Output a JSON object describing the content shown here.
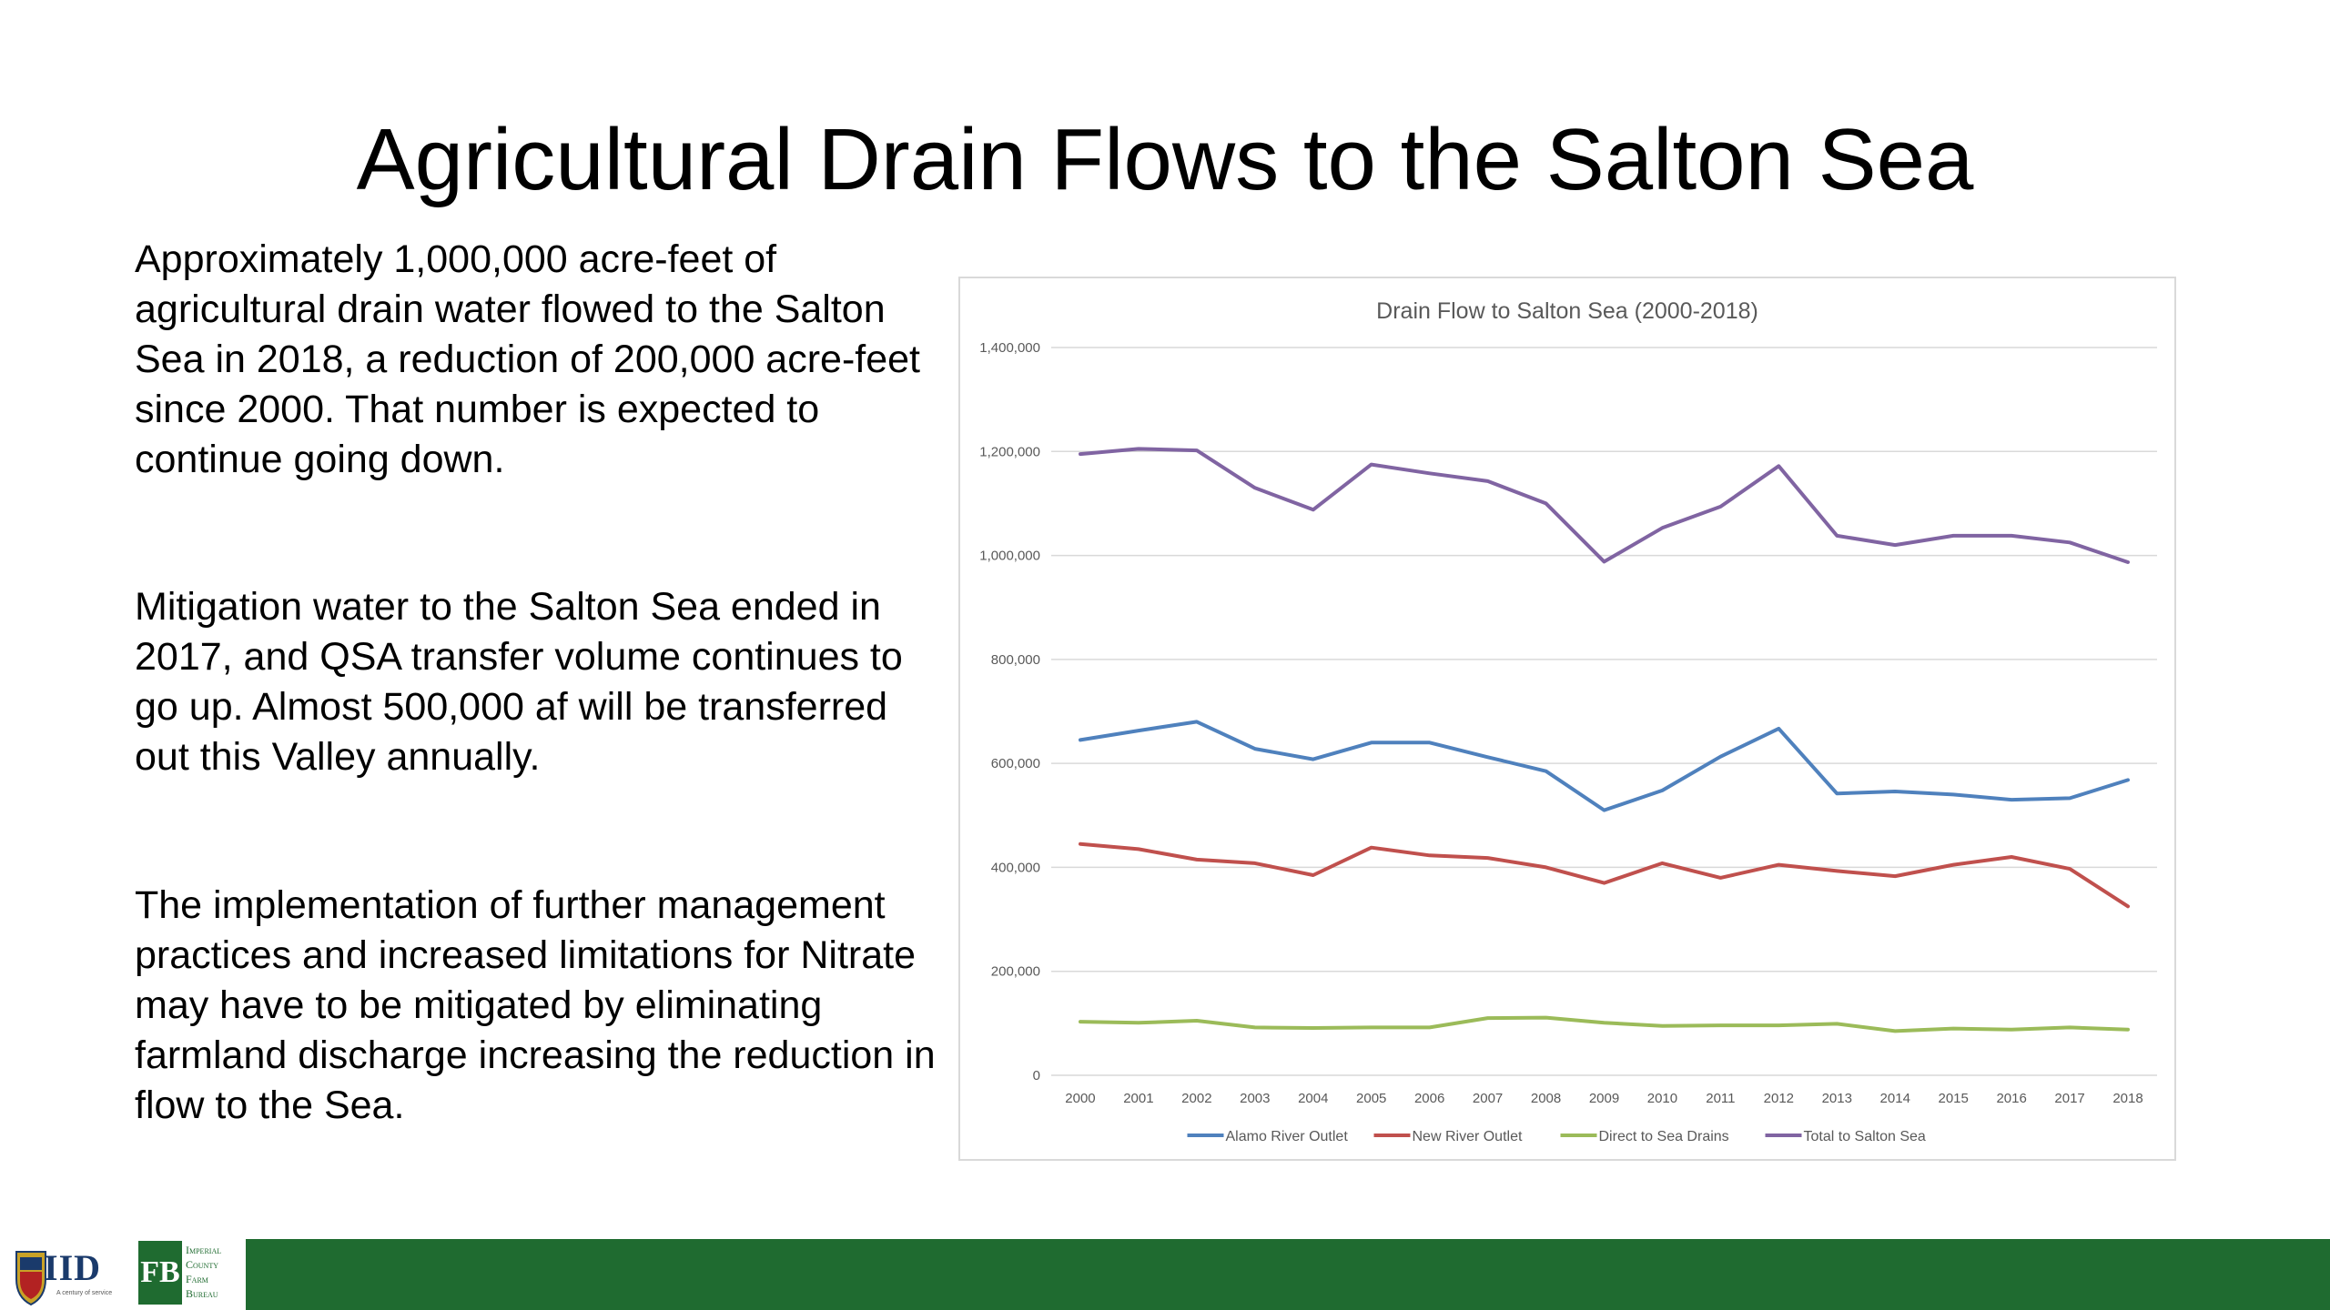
{
  "slide": {
    "title": "Agricultural Drain Flows to the Salton Sea",
    "paragraphs": [
      "Approximately 1,000,000 acre-feet of agricultural drain water flowed to the Salton Sea in 2018, a reduction of 200,000 acre-feet since 2000. That number is expected to continue going down.",
      "Mitigation water to the Salton Sea ended in 2017, and QSA transfer volume continues to go up. Almost 500,000 af will be transferred out this Valley annually.",
      "The implementation of further management practices and increased limitations for Nitrate may have to be mitigated by eliminating farmland discharge increasing the reduction in flow to the Sea."
    ]
  },
  "footer": {
    "logo_iid": "IID",
    "logo_iid_sub": "A century of service",
    "logo_fb": "FB",
    "logo_fb_lines": [
      "Imperial",
      "County",
      "Farm",
      "Bureau"
    ],
    "bar_color": "#1f6b30"
  },
  "chart_data": {
    "type": "line",
    "title": "Drain Flow to Salton Sea (2000-2018)",
    "x": [
      "2000",
      "2001",
      "2002",
      "2003",
      "2004",
      "2005",
      "2006",
      "2007",
      "2008",
      "2009",
      "2010",
      "2011",
      "2012",
      "2013",
      "2014",
      "2015",
      "2016",
      "2017",
      "2018"
    ],
    "ylim": [
      0,
      1400000
    ],
    "yticks": [
      0,
      200000,
      400000,
      600000,
      800000,
      1000000,
      1200000,
      1400000
    ],
    "ytick_labels": [
      "0",
      "200,000",
      "400,000",
      "600,000",
      "800,000",
      "1,000,000",
      "1,200,000",
      "1,400,000"
    ],
    "grid": true,
    "legend": "bottom",
    "series": [
      {
        "name": "Alamo River Outlet",
        "color": "#4f81bd",
        "values": [
          645000,
          663000,
          680000,
          628000,
          608000,
          640000,
          640000,
          612000,
          585000,
          510000,
          548000,
          613000,
          667000,
          542000,
          546000,
          540000,
          530000,
          533000,
          568000
        ]
      },
      {
        "name": "New River Outlet",
        "color": "#c0504d",
        "values": [
          445000,
          435000,
          415000,
          408000,
          385000,
          438000,
          423000,
          418000,
          400000,
          370000,
          408000,
          380000,
          405000,
          393000,
          383000,
          405000,
          420000,
          397000,
          325000
        ]
      },
      {
        "name": "Direct to Sea Drains",
        "color": "#9bbb59",
        "values": [
          103000,
          101000,
          105000,
          92000,
          91000,
          92000,
          92000,
          110000,
          111000,
          101000,
          95000,
          96000,
          96000,
          99000,
          85000,
          90000,
          88000,
          92000,
          88000
        ]
      },
      {
        "name": "Total to Salton Sea",
        "color": "#8064a2",
        "values": [
          1195000,
          1205000,
          1202000,
          1130000,
          1088000,
          1175000,
          1158000,
          1143000,
          1100000,
          988000,
          1053000,
          1094000,
          1172000,
          1038000,
          1020000,
          1038000,
          1038000,
          1025000,
          987000
        ]
      }
    ]
  }
}
